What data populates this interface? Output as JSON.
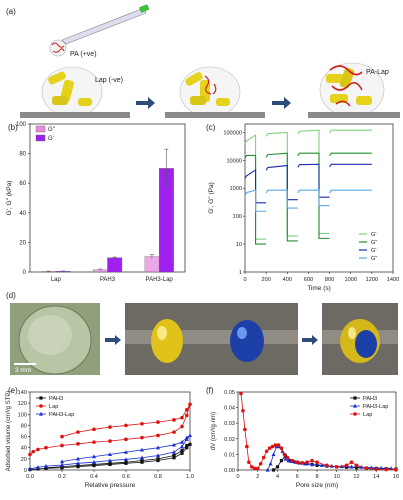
{
  "panels": {
    "a": {
      "label": "(a)",
      "pa_label": "PA (+ve)",
      "lap_label": "Lap (-ve)",
      "complex_label": "PA-Lap"
    },
    "b": {
      "label": "(b)"
    },
    "c": {
      "label": "(c)"
    },
    "d": {
      "label": "(d)",
      "scale_bar": "3 mm"
    },
    "e": {
      "label": "(e)"
    },
    "f": {
      "label": "(f)"
    }
  },
  "chart_data": [
    {
      "id": "b",
      "type": "bar",
      "categories": [
        "Lap",
        "PAH3",
        "PAH3-Lap"
      ],
      "series": [
        {
          "name": "G''",
          "values": [
            0.4,
            1.6,
            10.5
          ],
          "errors": [
            0.2,
            0.4,
            1.2
          ],
          "color": "#e58ae0"
        },
        {
          "name": "G'",
          "values": [
            0.5,
            9.6,
            70
          ],
          "errors": [
            0.2,
            0.5,
            13
          ],
          "color": "#a020f0"
        }
      ],
      "ylabel": "G', G'' (kPa)",
      "ylim": [
        0,
        100
      ],
      "yticks": [
        0,
        20,
        40,
        60,
        80,
        100
      ],
      "legend": "top-left"
    },
    {
      "id": "c",
      "type": "line",
      "xlabel": "Time (s)",
      "ylabel": "G', G'' (Pa)",
      "xlim": [
        0,
        1400
      ],
      "xticks": [
        0,
        200,
        400,
        600,
        800,
        1000,
        1200,
        1400
      ],
      "yscale": "log",
      "ylim": [
        1,
        200000
      ],
      "yticks": [
        1,
        10,
        100,
        1000,
        10000,
        100000
      ],
      "ytick_labels": [
        "1",
        "10",
        "100",
        "1000",
        "10000",
        "100000"
      ],
      "legend": "bottom-right",
      "step_series": [
        {
          "name": "G'",
          "color": "#7fd37f",
          "levels": [
            50000,
            80000,
            90000,
            100000,
            110000,
            120000
          ],
          "low": 15
        },
        {
          "name": "G''",
          "color": "#1f8f2f",
          "levels": [
            15000,
            15000,
            16000,
            18000,
            18000,
            18000
          ],
          "low": 10
        },
        {
          "name": "G'",
          "color": "#1a2fb0",
          "levels": [
            2800,
            4500,
            5500,
            6500,
            7000,
            7200
          ],
          "low": 300
        },
        {
          "name": "G''",
          "color": "#5aa8e8",
          "levels": [
            700,
            850,
            850,
            850,
            850,
            850
          ],
          "low": 150
        }
      ],
      "step_times": [
        0,
        100,
        200,
        400,
        500,
        700,
        800,
        1200
      ]
    },
    {
      "id": "e",
      "type": "line",
      "xlabel": "Relative pressure",
      "ylabel": "Adsorbed volume (cm³/g STP)",
      "xlim": [
        0,
        1.0
      ],
      "xticks": [
        0.0,
        0.2,
        0.4,
        0.6,
        0.8,
        1.0
      ],
      "ylim": [
        0,
        140
      ],
      "yticks": [
        0,
        20,
        40,
        60,
        80,
        100,
        120,
        140
      ],
      "legend": "top-left",
      "series": [
        {
          "name": "PAH3",
          "color": "#111111",
          "marker": "square",
          "x": [
            0.0,
            0.05,
            0.1,
            0.2,
            0.3,
            0.4,
            0.5,
            0.6,
            0.7,
            0.8,
            0.9,
            0.95,
            0.98,
            1.0,
            0.98,
            0.95,
            0.9,
            0.8,
            0.7,
            0.6,
            0.5,
            0.4,
            0.3,
            0.2,
            0.1
          ],
          "y": [
            1,
            2,
            3,
            4,
            6,
            8,
            10,
            12,
            14,
            17,
            22,
            30,
            40,
            46,
            44,
            35,
            26,
            20,
            17,
            14,
            12,
            10,
            8,
            6,
            4
          ]
        },
        {
          "name": "Lap",
          "color": "#e01010",
          "marker": "circle",
          "x": [
            0.0,
            0.02,
            0.05,
            0.1,
            0.2,
            0.3,
            0.4,
            0.5,
            0.6,
            0.7,
            0.8,
            0.9,
            0.95,
            0.98,
            1.0,
            0.98,
            0.95,
            0.9,
            0.8,
            0.7,
            0.6,
            0.5,
            0.4,
            0.3,
            0.2
          ],
          "y": [
            28,
            33,
            37,
            40,
            44,
            47,
            50,
            52,
            55,
            58,
            62,
            68,
            78,
            98,
            118,
            108,
            94,
            90,
            86,
            83,
            80,
            77,
            73,
            68,
            60
          ]
        },
        {
          "name": "PAH3-Lap",
          "color": "#1a2fd0",
          "marker": "triangle",
          "x": [
            0.0,
            0.05,
            0.1,
            0.2,
            0.3,
            0.4,
            0.5,
            0.6,
            0.7,
            0.8,
            0.9,
            0.95,
            0.98,
            1.0,
            0.98,
            0.95,
            0.9,
            0.8,
            0.7,
            0.6,
            0.5,
            0.4,
            0.3,
            0.2
          ],
          "y": [
            2,
            5,
            7,
            9,
            12,
            14,
            17,
            19,
            22,
            26,
            32,
            42,
            55,
            62,
            58,
            50,
            45,
            40,
            36,
            32,
            28,
            24,
            20,
            15
          ]
        }
      ]
    },
    {
      "id": "f",
      "type": "line",
      "xlabel": "Pore size (nm)",
      "ylabel": "dV (cm³/g·nm)",
      "xlim": [
        0,
        16
      ],
      "xticks": [
        0,
        2,
        4,
        6,
        8,
        10,
        12,
        14,
        16
      ],
      "ylim": [
        0,
        0.05
      ],
      "yticks": [
        0.0,
        0.01,
        0.02,
        0.03,
        0.04,
        0.05
      ],
      "ytick_labels": [
        "0.00",
        "0.01",
        "0.02",
        "0.03",
        "0.04",
        "0.05"
      ],
      "legend": "top-right",
      "series": [
        {
          "name": "PAH3",
          "color": "#111111",
          "marker": "square",
          "x": [
            3.6,
            4.0,
            4.4,
            4.8,
            5.2,
            5.6,
            6.0,
            6.5,
            7.0,
            7.5,
            8.0,
            9.0,
            10.0,
            11.0,
            12.0,
            13.0,
            14.0,
            15.0,
            16.0
          ],
          "y": [
            0.0,
            0.002,
            0.006,
            0.009,
            0.006,
            0.0055,
            0.005,
            0.0045,
            0.004,
            0.0035,
            0.003,
            0.0025,
            0.002,
            0.0018,
            0.0015,
            0.0012,
            0.001,
            0.0008,
            0.0006
          ]
        },
        {
          "name": "PAH3-Lap",
          "color": "#1a2fd0",
          "marker": "triangle",
          "x": [
            3.0,
            3.3,
            3.6,
            3.9,
            4.2,
            4.5,
            4.8,
            5.1,
            5.4,
            5.8,
            6.2,
            6.8,
            7.5,
            8.5,
            9.5,
            10.5,
            11.5,
            12.5,
            13.5,
            14.5,
            15.5
          ],
          "y": [
            0.0,
            0.004,
            0.01,
            0.015,
            0.015,
            0.012,
            0.007,
            0.006,
            0.0055,
            0.005,
            0.0045,
            0.004,
            0.0035,
            0.003,
            0.0025,
            0.0022,
            0.002,
            0.0018,
            0.0015,
            0.0012,
            0.001
          ]
        },
        {
          "name": "Lap",
          "color": "#e01010",
          "marker": "circle",
          "x": [
            0.3,
            0.5,
            0.7,
            0.9,
            1.1,
            1.4,
            1.7,
            2.0,
            2.3,
            2.6,
            2.9,
            3.2,
            3.5,
            3.8,
            4.1,
            4.4,
            4.7,
            5.0,
            5.5,
            6.0,
            6.5,
            7.0,
            7.5,
            8.0,
            9.0,
            10.0,
            11.0,
            11.5,
            12.0,
            13.0,
            14.0,
            15.0,
            16.0
          ],
          "y": [
            0.049,
            0.038,
            0.026,
            0.015,
            0.005,
            0.002,
            0.001,
            0.001,
            0.004,
            0.008,
            0.012,
            0.014,
            0.015,
            0.016,
            0.016,
            0.014,
            0.01,
            0.008,
            0.006,
            0.005,
            0.0045,
            0.005,
            0.006,
            0.005,
            0.003,
            0.002,
            0.003,
            0.005,
            0.003,
            0.001,
            0.0005,
            0.0003,
            0.0002
          ]
        }
      ]
    }
  ]
}
